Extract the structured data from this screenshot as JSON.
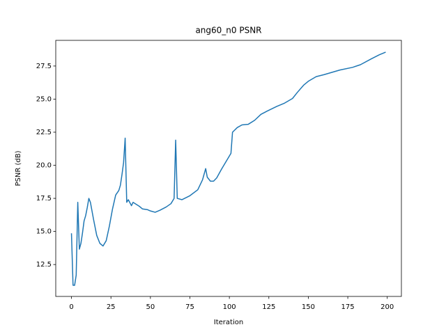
{
  "chart_data": {
    "type": "line",
    "title": "ang60_n0 PSNR",
    "x_label": "Iteration",
    "y_label": "PSNR (dB)",
    "x": [
      0,
      1,
      2,
      3,
      4,
      5,
      6,
      7,
      8,
      9,
      10,
      11,
      12,
      14,
      16,
      18,
      20,
      22,
      24,
      26,
      28,
      30,
      31,
      32,
      33,
      34,
      35,
      36,
      38,
      39,
      41,
      43,
      45,
      48,
      50,
      53,
      56,
      60,
      63,
      65,
      66,
      67,
      70,
      75,
      80,
      83,
      85,
      86,
      88,
      90,
      92,
      95,
      99,
      101,
      102,
      105,
      108,
      112,
      116,
      120,
      124,
      130,
      135,
      140,
      143,
      147,
      150,
      155,
      160,
      170,
      178,
      183,
      190,
      195,
      199
    ],
    "values": [
      14.86,
      10.93,
      10.93,
      11.7,
      17.2,
      13.66,
      14.1,
      14.9,
      15.8,
      16.2,
      16.8,
      17.5,
      17.2,
      15.9,
      14.7,
      14.1,
      13.9,
      14.3,
      15.4,
      16.7,
      17.75,
      18.1,
      18.5,
      19.3,
      20.2,
      22.05,
      17.2,
      17.4,
      16.95,
      17.2,
      17.05,
      16.9,
      16.7,
      16.65,
      16.55,
      16.45,
      16.6,
      16.85,
      17.1,
      17.5,
      21.9,
      17.5,
      17.4,
      17.7,
      18.15,
      18.9,
      19.75,
      19.1,
      18.8,
      18.8,
      19.05,
      19.7,
      20.5,
      20.9,
      22.5,
      22.85,
      23.05,
      23.1,
      23.4,
      23.85,
      24.1,
      24.45,
      24.7,
      25.05,
      25.5,
      26.05,
      26.35,
      26.7,
      26.85,
      27.2,
      27.4,
      27.6,
      28.05,
      28.35,
      28.55
    ],
    "color": "#1f77b4",
    "xlim": [
      -9.95,
      208.95
    ],
    "xticks": [
      0,
      25,
      50,
      75,
      100,
      125,
      150,
      175,
      200
    ],
    "ylim": [
      10.09,
      29.44
    ],
    "yticks": [
      12.5,
      {
        "value": 15,
        "label": "15.0"
      },
      17.5,
      {
        "value": 20,
        "label": "20.0"
      },
      22.5,
      {
        "value": 25,
        "label": "25.0"
      },
      27.5
    ],
    "grid": false
  }
}
